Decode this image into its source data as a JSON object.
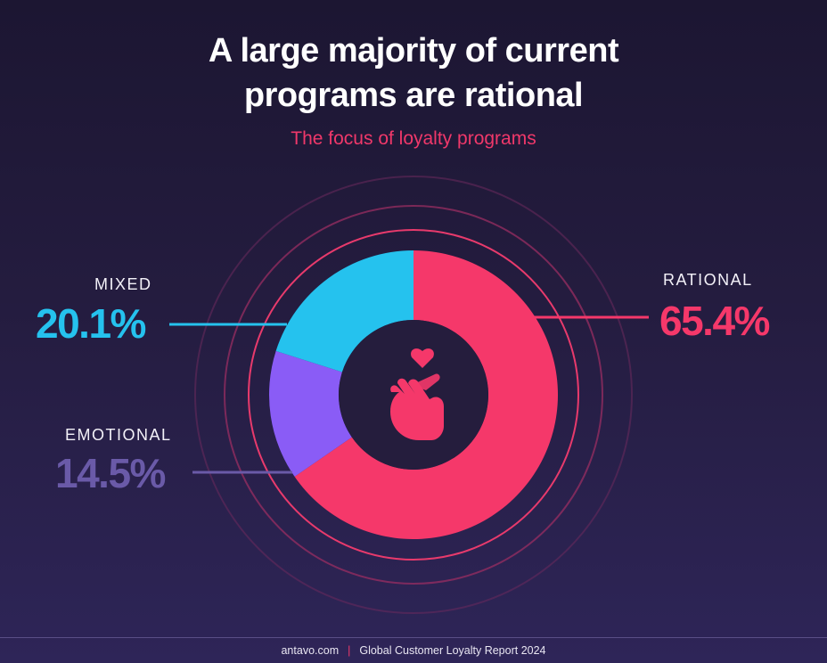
{
  "title_line1": "A large majority of current",
  "title_line2": "programs are rational",
  "subtitle": "The focus of loyalty programs",
  "chart_data": {
    "type": "pie",
    "title": "A large majority of current programs are rational",
    "subtitle": "The focus of loyalty programs",
    "slices": [
      {
        "label": "RATIONAL",
        "value": 65.4,
        "display": "65.4%",
        "color": "#f5386a"
      },
      {
        "label": "EMOTIONAL",
        "value": 14.5,
        "display": "14.5%",
        "color": "#8a5cf6"
      },
      {
        "label": "MIXED",
        "value": 20.1,
        "display": "20.1%",
        "color": "#25c2ee"
      }
    ],
    "value_colors": {
      "RATIONAL": "#f5386a",
      "EMOTIONAL": "#6a5aa8",
      "MIXED": "#25c2ee"
    },
    "donut": true,
    "center_icon": "heart-hand-icon"
  },
  "footer": {
    "site": "antavo.com",
    "separator": "|",
    "report": "Global Customer Loyalty Report 2024"
  }
}
